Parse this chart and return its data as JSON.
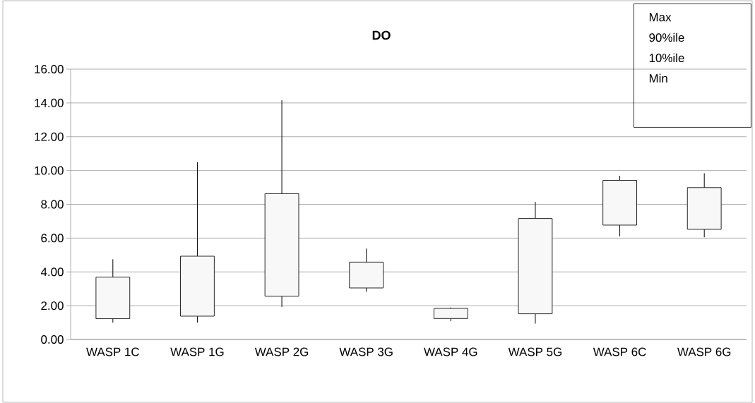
{
  "chart_data": {
    "type": "candlestick",
    "title": "DO",
    "categories": [
      "WASP 1C",
      "WASP 1G",
      "WASP 2G",
      "WASP 3G",
      "WASP 4G",
      "WASP 5G",
      "WASP 6C",
      "WASP 6G"
    ],
    "ohlc": [
      [
        1.23,
        4.75,
        1.0,
        3.69
      ],
      [
        1.38,
        10.5,
        1.0,
        4.93
      ],
      [
        2.56,
        14.16,
        1.93,
        8.63
      ],
      [
        3.05,
        5.38,
        2.82,
        4.58
      ],
      [
        1.24,
        1.9,
        1.08,
        1.84
      ],
      [
        1.52,
        8.15,
        0.94,
        7.16
      ],
      [
        6.77,
        9.69,
        6.11,
        9.42
      ],
      [
        6.52,
        9.84,
        6.05,
        8.99
      ]
    ],
    "color": "#f8f8f8",
    "ylim": [
      0,
      16
    ],
    "yticks": [
      {
        "value": 0,
        "label": "0.00"
      },
      {
        "value": 2,
        "label": "2.00"
      },
      {
        "value": 4,
        "label": "4.00"
      },
      {
        "value": 6,
        "label": "6.00"
      },
      {
        "value": 8,
        "label": "8.00"
      },
      {
        "value": 10,
        "label": "10.00"
      },
      {
        "value": 12,
        "label": "12.00"
      },
      {
        "value": 14,
        "label": "14.00"
      },
      {
        "value": 16,
        "label": "16.00"
      }
    ],
    "grid": "y",
    "annotations": [
      "Max",
      "90%ile",
      "10%ile",
      "Min"
    ]
  }
}
